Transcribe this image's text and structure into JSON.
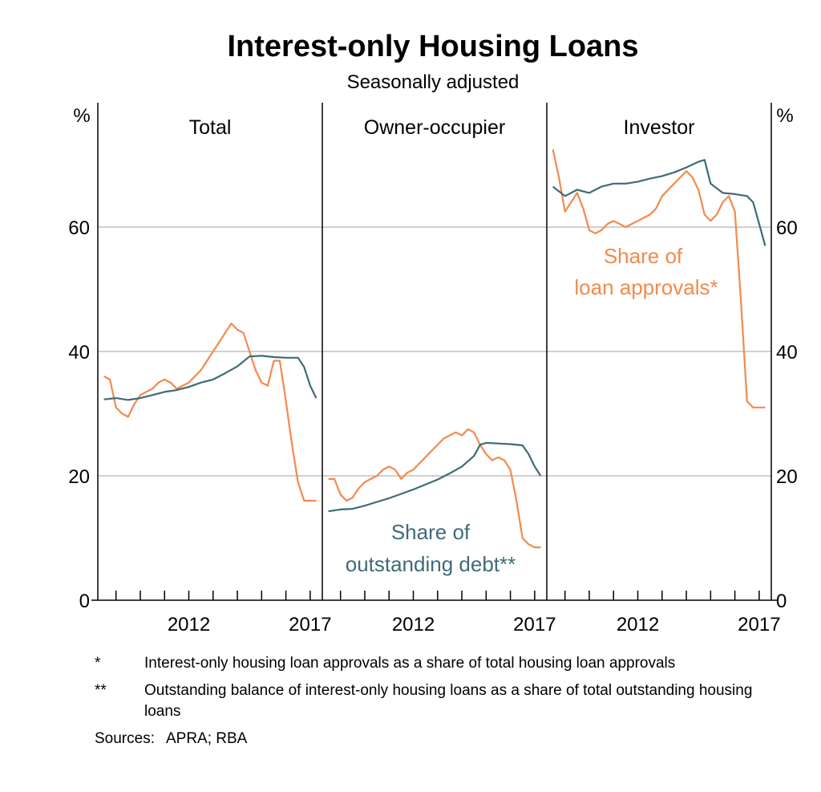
{
  "chart_data": {
    "type": "line",
    "title": "Interest-only Housing Loans",
    "subtitle": "Seasonally adjusted",
    "ylabel_left": "%",
    "ylabel_right": "%",
    "ylim": [
      0,
      80
    ],
    "yticks": [
      0,
      20,
      40,
      60
    ],
    "xticks": [
      2012,
      2017
    ],
    "xlim": [
      2008.25,
      2017.5
    ],
    "grid": true,
    "panels": [
      {
        "name": "Total",
        "series": [
          {
            "name": "Share of loan approvals*",
            "color": "#f28a4e",
            "x": [
              2008.5,
              2008.75,
              2009.0,
              2009.25,
              2009.5,
              2009.75,
              2010.0,
              2010.25,
              2010.5,
              2010.75,
              2011.0,
              2011.25,
              2011.5,
              2011.75,
              2012.0,
              2012.25,
              2012.5,
              2012.75,
              2013.0,
              2013.25,
              2013.5,
              2013.75,
              2014.0,
              2014.25,
              2014.5,
              2014.75,
              2015.0,
              2015.25,
              2015.5,
              2015.75,
              2016.0,
              2016.25,
              2016.5,
              2016.75,
              2017.0,
              2017.25
            ],
            "y": [
              36,
              35.5,
              31,
              30,
              29.5,
              31.5,
              33,
              33.5,
              34,
              35,
              35.5,
              35,
              34,
              34.5,
              35,
              36,
              37,
              38.5,
              40,
              41.5,
              43,
              44.5,
              43.5,
              43,
              40,
              37,
              35,
              34.5,
              38.5,
              38.5,
              32,
              25,
              19,
              16,
              16,
              16
            ]
          },
          {
            "name": "Share of outstanding debt**",
            "color": "#3f6b78",
            "x": [
              2008.5,
              2009.0,
              2009.5,
              2010.0,
              2010.5,
              2011.0,
              2011.5,
              2012.0,
              2012.5,
              2013.0,
              2013.5,
              2014.0,
              2014.5,
              2015.0,
              2015.5,
              2016.0,
              2016.5,
              2016.75,
              2017.0,
              2017.25
            ],
            "y": [
              32.3,
              32.5,
              32.2,
              32.5,
              33,
              33.5,
              33.8,
              34.3,
              35,
              35.5,
              36.5,
              37.6,
              39.2,
              39.3,
              39.1,
              39,
              39,
              37.5,
              34.5,
              32.5
            ]
          }
        ]
      },
      {
        "name": "Owner-occupier",
        "series": [
          {
            "name": "Share of loan approvals*",
            "color": "#f28a4e",
            "x": [
              2008.5,
              2008.75,
              2009.0,
              2009.25,
              2009.5,
              2009.75,
              2010.0,
              2010.25,
              2010.5,
              2010.75,
              2011.0,
              2011.25,
              2011.5,
              2011.75,
              2012.0,
              2012.25,
              2012.5,
              2012.75,
              2013.0,
              2013.25,
              2013.5,
              2013.75,
              2014.0,
              2014.25,
              2014.5,
              2014.75,
              2015.0,
              2015.25,
              2015.5,
              2015.75,
              2016.0,
              2016.25,
              2016.5,
              2016.75,
              2017.0,
              2017.25
            ],
            "y": [
              19.5,
              19.5,
              17,
              16,
              16.5,
              18,
              19,
              19.5,
              20,
              21,
              21.5,
              21,
              19.5,
              20.5,
              21,
              22,
              23,
              24,
              25,
              26,
              26.5,
              27,
              26.5,
              27.5,
              27,
              25,
              23.5,
              22.5,
              23,
              22.5,
              21,
              16,
              10,
              9,
              8.5,
              8.5
            ]
          },
          {
            "name": "Share of outstanding debt**",
            "color": "#3f6b78",
            "x": [
              2008.5,
              2009.0,
              2009.5,
              2010.0,
              2010.5,
              2011.0,
              2011.5,
              2012.0,
              2012.5,
              2013.0,
              2013.5,
              2014.0,
              2014.5,
              2014.75,
              2015.0,
              2015.5,
              2016.0,
              2016.5,
              2016.75,
              2017.0,
              2017.25
            ],
            "y": [
              14.3,
              14.6,
              14.7,
              15.2,
              15.8,
              16.4,
              17.1,
              17.8,
              18.6,
              19.4,
              20.4,
              21.5,
              23.2,
              25,
              25.3,
              25.2,
              25.1,
              24.9,
              23.5,
              21.5,
              20
            ]
          }
        ]
      },
      {
        "name": "Investor",
        "series": [
          {
            "name": "Share of loan approvals*",
            "color": "#f28a4e",
            "x": [
              2008.5,
              2008.75,
              2009.0,
              2009.25,
              2009.5,
              2009.75,
              2010.0,
              2010.25,
              2010.5,
              2010.75,
              2011.0,
              2011.25,
              2011.5,
              2011.75,
              2012.0,
              2012.25,
              2012.5,
              2012.75,
              2013.0,
              2013.25,
              2013.5,
              2013.75,
              2014.0,
              2014.25,
              2014.5,
              2014.75,
              2015.0,
              2015.25,
              2015.5,
              2015.75,
              2016.0,
              2016.25,
              2016.5,
              2016.75,
              2017.0,
              2017.25
            ],
            "y": [
              72.5,
              68,
              62.5,
              64,
              65.5,
              63,
              59.5,
              59,
              59.5,
              60.5,
              61,
              60.5,
              60,
              60.5,
              61,
              61.5,
              62,
              63,
              65,
              66,
              67,
              68,
              69,
              68,
              66,
              62,
              61,
              62,
              64,
              65,
              62.5,
              48,
              32,
              31,
              31,
              31
            ]
          },
          {
            "name": "Share of outstanding debt**",
            "color": "#3f6b78",
            "x": [
              2008.5,
              2009.0,
              2009.5,
              2010.0,
              2010.5,
              2011.0,
              2011.5,
              2012.0,
              2012.5,
              2013.0,
              2013.5,
              2014.0,
              2014.5,
              2014.75,
              2015.0,
              2015.5,
              2016.0,
              2016.5,
              2016.75,
              2017.0,
              2017.25
            ],
            "y": [
              66.5,
              65,
              66,
              65.5,
              66.5,
              67,
              67,
              67.3,
              67.8,
              68.2,
              68.8,
              69.6,
              70.5,
              70.8,
              67,
              65.5,
              65.3,
              65,
              64,
              60.5,
              57
            ]
          }
        ]
      }
    ],
    "annotations": {
      "approvals_line1": "Share of",
      "approvals_line2": "loan approvals*",
      "debt_line1": "Share of",
      "debt_line2": "outstanding debt**"
    }
  },
  "notes": [
    {
      "mark": "*",
      "text": "Interest-only housing loan approvals as a share of total housing loan approvals"
    },
    {
      "mark": "**",
      "text": "Outstanding balance of interest-only housing loans as a share of total outstanding housing loans"
    }
  ],
  "sources": {
    "label": "Sources:",
    "text": "APRA; RBA"
  },
  "colors": {
    "approvals": "#f28a4e",
    "debt": "#3f6b78",
    "grid": "#b5b5b5",
    "axis": "#000000"
  }
}
